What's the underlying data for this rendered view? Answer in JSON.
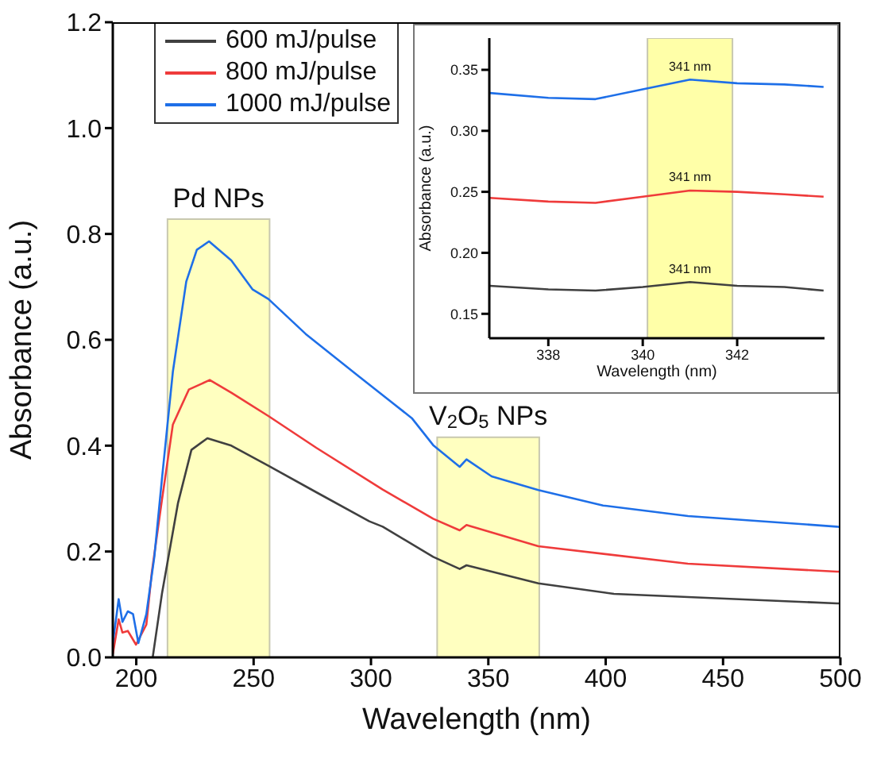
{
  "chart_data": [
    {
      "type": "line",
      "xlabel": "Wavelength (nm)",
      "ylabel": "Absorbance (a.u.)",
      "xlim": [
        190,
        500
      ],
      "xticks": [
        200,
        250,
        300,
        350,
        400,
        450,
        500
      ],
      "ylim": [
        0,
        1.2
      ],
      "yticks": [
        {
          "value": 0,
          "label": "0.0"
        },
        {
          "value": 0.2,
          "label": "0.2"
        },
        {
          "value": 0.4,
          "label": "0.4"
        },
        {
          "value": 0.6,
          "label": "0.6"
        },
        {
          "value": 0.8,
          "label": "0.8"
        },
        {
          "value": 1.0,
          "label": "1.0"
        },
        {
          "value": 1.2,
          "label": "1.2"
        }
      ],
      "legend": "top left",
      "line_style": "solid",
      "bands": [
        {
          "axis": "x",
          "from": 213.3,
          "to": 256.8,
          "color": "#ffffc0",
          "label": "Pd NPs"
        },
        {
          "axis": "x",
          "from": 328.2,
          "to": 371.7,
          "color": "#ffffc0",
          "label": "V$_{2}$O$_{5}$ NPs"
        }
      ],
      "series": [
        {
          "name": "600 mJ/pulse",
          "color": "#404040",
          "x": [
            207,
            211,
            217.8,
            223.5,
            230.3,
            240.5,
            256.3,
            276.7,
            299.3,
            305,
            326.5,
            337.8,
            340.7,
            371.3,
            403.5,
            498.5,
            500
          ],
          "values": [
            0,
            0.122,
            0.292,
            0.392,
            0.414,
            0.4,
            0.362,
            0.312,
            0.257,
            0.247,
            0.19,
            0.167,
            0.174,
            0.14,
            0.12,
            0.102,
            0.102
          ]
        },
        {
          "name": "800 mJ/pulse",
          "color": "#ef3b3b",
          "x": [
            190,
            192.5,
            194.1,
            196.4,
            199.9,
            204.3,
            206.6,
            210.7,
            215.6,
            222.4,
            231.3,
            240.5,
            256.3,
            276.7,
            305,
            326.5,
            337.8,
            340.7,
            371.3,
            435,
            498.5,
            500
          ],
          "values": [
            0.006,
            0.072,
            0.047,
            0.05,
            0.024,
            0.062,
            0.16,
            0.29,
            0.44,
            0.506,
            0.524,
            0.5,
            0.456,
            0.396,
            0.317,
            0.262,
            0.24,
            0.25,
            0.21,
            0.177,
            0.162,
            0.162
          ]
        },
        {
          "name": "1000 mJ/pulse",
          "color": "#1e6fe8",
          "x": [
            190,
            192.5,
            194.1,
            196.4,
            198.6,
            200.9,
            204.3,
            207.7,
            211,
            215.6,
            221.3,
            225.8,
            231,
            240.5,
            249.6,
            256.3,
            272.2,
            294.8,
            317.4,
            326.5,
            337.8,
            340.7,
            351.4,
            371.3,
            398.9,
            435.1,
            498.5,
            500
          ],
          "values": [
            0.027,
            0.11,
            0.067,
            0.087,
            0.082,
            0.027,
            0.082,
            0.19,
            0.34,
            0.54,
            0.71,
            0.77,
            0.786,
            0.75,
            0.695,
            0.677,
            0.611,
            0.531,
            0.452,
            0.401,
            0.36,
            0.374,
            0.342,
            0.316,
            0.287,
            0.267,
            0.247,
            0.246
          ]
        }
      ]
    },
    {
      "type": "line",
      "xlabel": "Wavelength (nm)",
      "ylabel": "Absorbance (a.u.)",
      "xlim": [
        336.75,
        343.85
      ],
      "xticks": [
        338,
        340,
        342
      ],
      "ylim": [
        0.13,
        0.376
      ],
      "yticks": [
        {
          "value": 0.15,
          "label": "0.15"
        },
        {
          "value": 0.2,
          "label": "0.20"
        },
        {
          "value": 0.25,
          "label": "0.25"
        },
        {
          "value": 0.3,
          "label": "0.30"
        },
        {
          "value": 0.35,
          "label": "0.35"
        }
      ],
      "line_style": "solid",
      "bands": [
        {
          "axis": "x",
          "from": 340.1,
          "to": 341.9,
          "color": "#ffffa8"
        }
      ],
      "annotations": [
        "341 nm",
        "341 nm",
        "341 nm"
      ],
      "series": [
        {
          "color": "#404040",
          "x": [
            336.76,
            338,
            339,
            340,
            341,
            342,
            343,
            343.83
          ],
          "values": [
            0.173,
            0.17,
            0.169,
            0.172,
            0.176,
            0.173,
            0.172,
            0.169
          ]
        },
        {
          "color": "#ef3b3b",
          "x": [
            336.76,
            338,
            339,
            340,
            341,
            342,
            343,
            343.83
          ],
          "values": [
            0.245,
            0.242,
            0.241,
            0.246,
            0.251,
            0.25,
            0.248,
            0.246
          ]
        },
        {
          "color": "#1e6fe8",
          "x": [
            336.76,
            338,
            339,
            340,
            341,
            342,
            343,
            343.83
          ],
          "values": [
            0.331,
            0.327,
            0.326,
            0.334,
            0.342,
            0.339,
            0.338,
            0.336
          ]
        }
      ]
    }
  ]
}
